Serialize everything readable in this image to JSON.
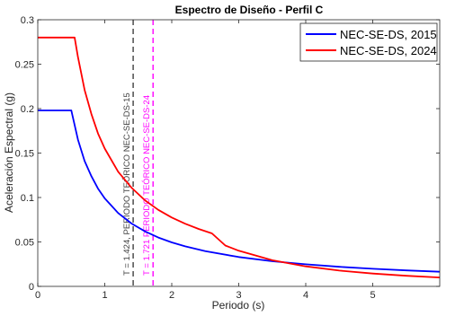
{
  "chart_data": {
    "type": "line",
    "title": "Espectro de Diseño - Perfil C",
    "xlabel": "Periodo (s)",
    "ylabel": "Aceleración Espectral (g)",
    "xlim": [
      0,
      6
    ],
    "ylim": [
      0,
      0.3
    ],
    "xticks": [
      0,
      1,
      2,
      3,
      4,
      5
    ],
    "xtick_labels": [
      "0",
      "1",
      "2",
      "3",
      "4",
      "5"
    ],
    "yticks": [
      0,
      0.05,
      0.1,
      0.15,
      0.2,
      0.25,
      0.3
    ],
    "ytick_labels": [
      "0",
      "0.05",
      "0.1",
      "0.15",
      "0.2",
      "0.25",
      "0.3"
    ],
    "grid": false,
    "legend_position": "top-right",
    "series": [
      {
        "name": "NEC-SE-DS, 2015",
        "color": "#0000ff",
        "x": [
          0,
          0.1,
          0.2,
          0.3,
          0.4,
          0.5,
          0.6,
          0.7,
          0.8,
          0.9,
          1.0,
          1.2,
          1.4,
          1.6,
          1.8,
          2.0,
          2.2,
          2.5,
          3.0,
          3.5,
          4.0,
          4.5,
          5.0,
          5.5,
          6.0
        ],
        "y": [
          0.198,
          0.198,
          0.198,
          0.198,
          0.198,
          0.198,
          0.165,
          0.141,
          0.124,
          0.11,
          0.099,
          0.0825,
          0.0707,
          0.0619,
          0.055,
          0.0495,
          0.045,
          0.0396,
          0.033,
          0.0283,
          0.0248,
          0.022,
          0.0198,
          0.018,
          0.0165
        ]
      },
      {
        "name": "NEC-SE-DS, 2024",
        "color": "#ff0000",
        "x": [
          0,
          0.1,
          0.2,
          0.3,
          0.4,
          0.5,
          0.55,
          0.6,
          0.7,
          0.8,
          0.9,
          1.0,
          1.2,
          1.4,
          1.6,
          1.8,
          2.0,
          2.2,
          2.4,
          2.6,
          2.8,
          3.0,
          3.5,
          4.0,
          4.5,
          5.0,
          5.5,
          6.0
        ],
        "y": [
          0.28,
          0.28,
          0.28,
          0.28,
          0.28,
          0.28,
          0.28,
          0.258,
          0.221,
          0.194,
          0.172,
          0.155,
          0.129,
          0.111,
          0.0969,
          0.0861,
          0.0775,
          0.0705,
          0.0646,
          0.0596,
          0.046,
          0.0401,
          0.0294,
          0.0225,
          0.0178,
          0.0144,
          0.0119,
          0.01
        ]
      }
    ],
    "vlines": [
      {
        "x": 1.424,
        "color": "#404040",
        "style": "dashed",
        "label": "T = 1.424, PERIODO TEÓRICO NEC-SE-DS-15"
      },
      {
        "x": 1.721,
        "color": "#ff00ff",
        "style": "dashed",
        "label": "T = 1.721 PERIODO TEÓRICO NEC-SE-DS-24"
      }
    ]
  }
}
